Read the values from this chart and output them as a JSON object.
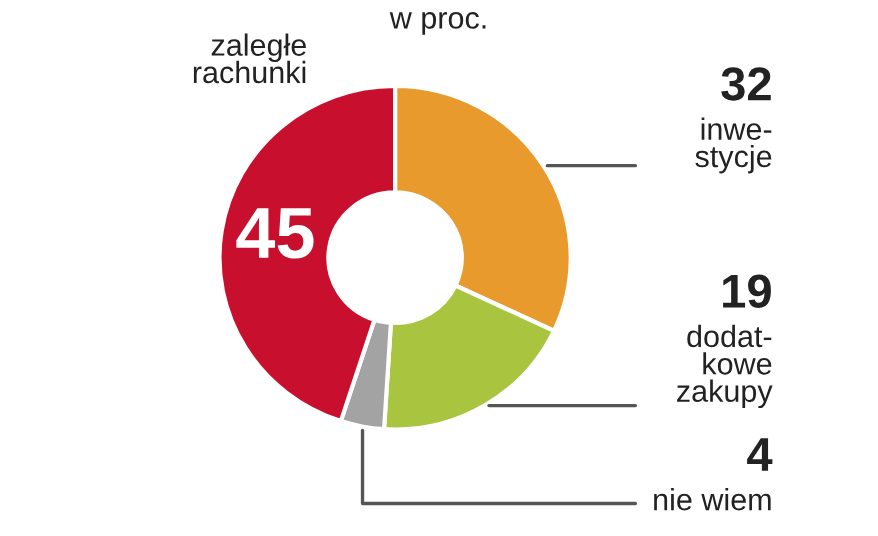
{
  "chart_data": {
    "type": "donut",
    "subtitle": "w proc.",
    "categories": [
      "inwe-\nstycje",
      "dodat-\nkowe\nzakupy",
      "nie wiem",
      "zaległe\nrachunki"
    ],
    "values": [
      32,
      19,
      4,
      45
    ],
    "colors": [
      "#e99a2c",
      "#a9c540",
      "#a3a3a3",
      "#c8102e"
    ],
    "data_labels": true,
    "legend": false
  }
}
